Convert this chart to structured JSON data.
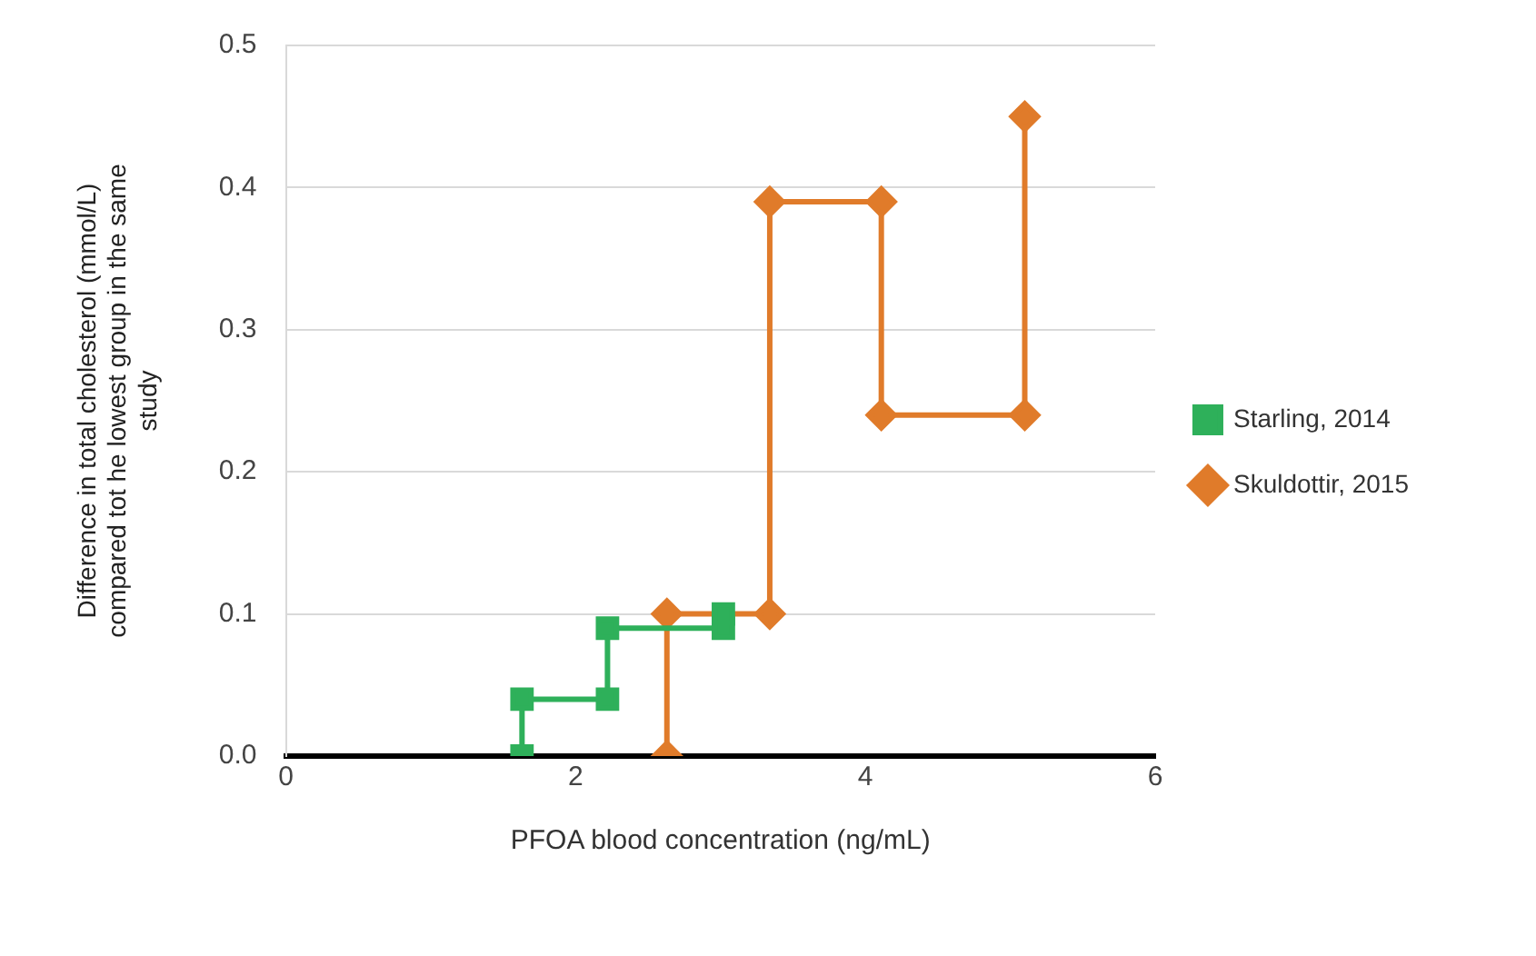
{
  "chart_data": {
    "type": "line",
    "xlabel": "PFOA blood concentration (ng/mL)",
    "ylabel": "Difference in total cholesterol (mmol/L) compared tot he lowest group in the same study",
    "xlim": [
      0,
      6
    ],
    "xticks": [
      0,
      2,
      4,
      6
    ],
    "ylim": [
      0,
      0.5
    ],
    "yticks": [
      {
        "value": 0,
        "label": "0.0"
      },
      0.1,
      0.2,
      0.3,
      0.4,
      0.5
    ],
    "grid": "y",
    "legend": "right",
    "series": [
      {
        "name": "Starling, 2014",
        "color": "#2eb05a",
        "marker": "square",
        "x": [
          1.63,
          1.63,
          2.22,
          2.22,
          3.02,
          3.02
        ],
        "values": [
          0,
          0.04,
          0.04,
          0.09,
          0.09,
          0.1
        ]
      },
      {
        "name": "Skuldottir, 2015",
        "color": "#e07b2a",
        "marker": "diamond",
        "x": [
          2.63,
          2.63,
          3.34,
          3.34,
          4.11,
          4.11,
          5.1,
          5.1
        ],
        "values": [
          0,
          0.1,
          0.1,
          0.39,
          0.39,
          0.24,
          0.24,
          0.45
        ]
      }
    ]
  }
}
